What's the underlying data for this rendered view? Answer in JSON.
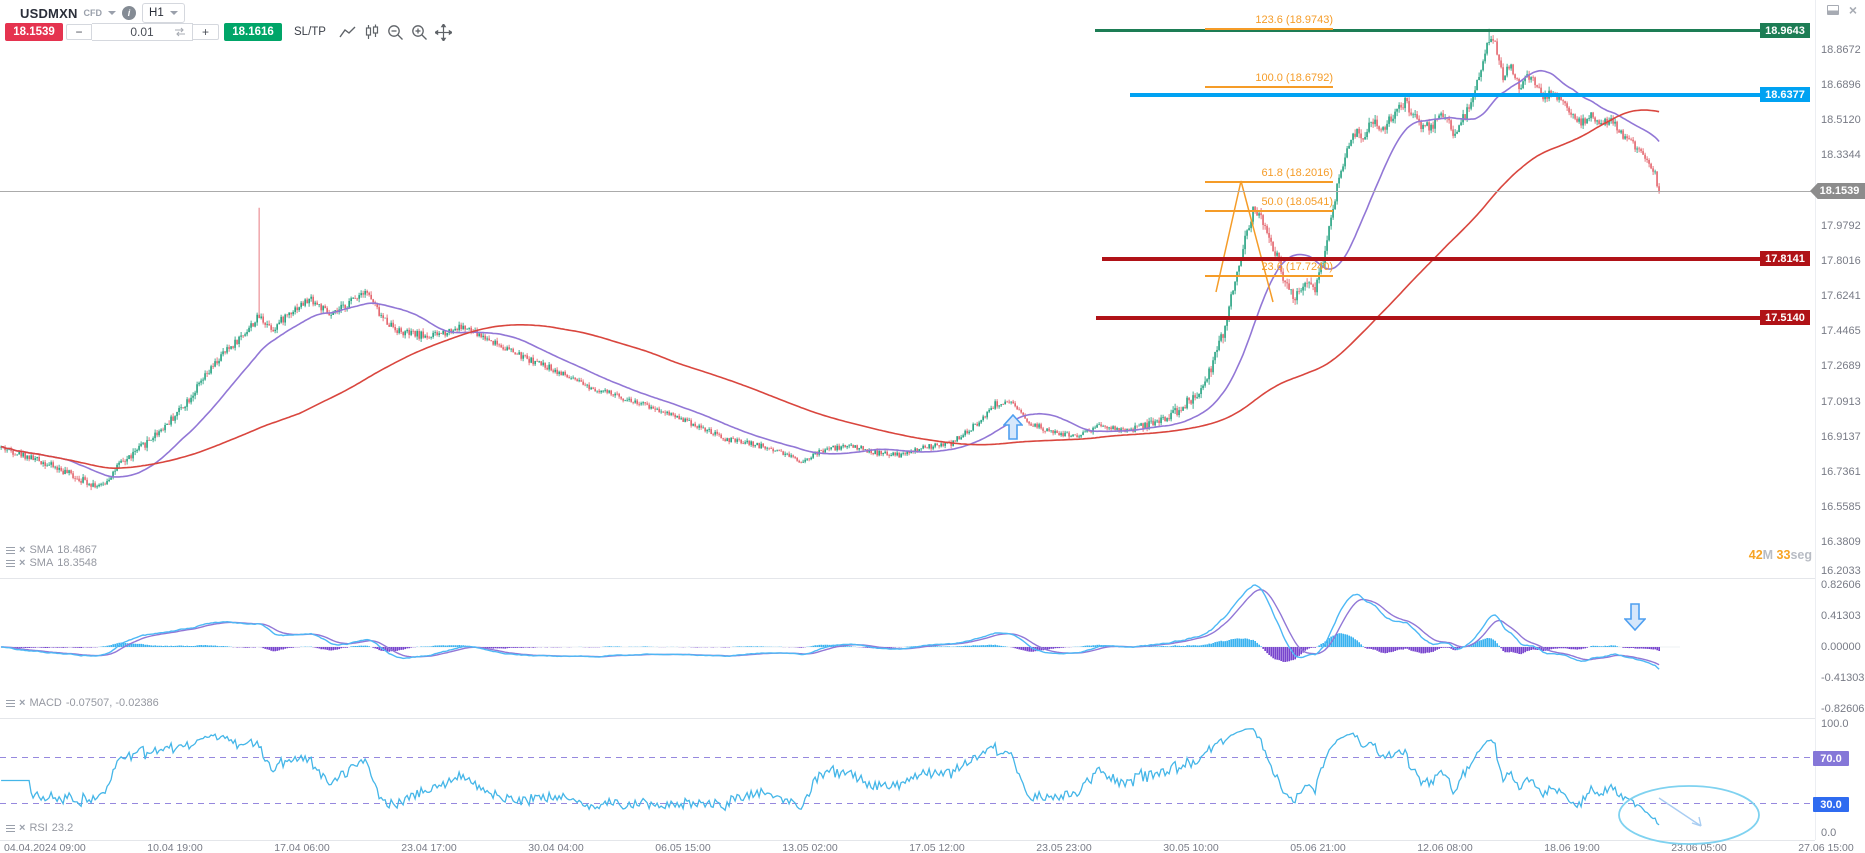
{
  "header": {
    "symbol": "USDMXN",
    "instrument_type": "CFD",
    "timeframe": "H1",
    "sell_price": "18.1539",
    "buy_price": "18.1616",
    "volume": "0.01",
    "minus_label": "−",
    "plus_label": "+",
    "sltp_label": "SL/TP",
    "sell_color": "#e5334f",
    "buy_color": "#00a568"
  },
  "window_controls": {
    "close": "×"
  },
  "indicators": {
    "sma1": {
      "label": "SMA",
      "value": "18.4867"
    },
    "sma2": {
      "label": "SMA",
      "value": "18.3548"
    },
    "macd": {
      "label": "MACD",
      "value": "-0.07507, -0.02386"
    },
    "rsi": {
      "label": "RSI",
      "value": "23.2"
    }
  },
  "countdown": {
    "min": "42",
    "min_unit": "M ",
    "sec": "33",
    "sec_unit": "seg",
    "accent_color": "#f7a424",
    "muted_color": "#b8bcc4"
  },
  "price_axis": {
    "current": "18.1539",
    "ticks": [
      "18.8672",
      "18.6896",
      "18.5120",
      "18.3344",
      "17.9792",
      "17.8016",
      "17.6241",
      "17.4465",
      "17.2689",
      "17.0913",
      "16.9137",
      "16.7361",
      "16.5585",
      "16.3809",
      "16.2033"
    ]
  },
  "macd_axis": {
    "ticks": [
      "0.82606",
      "0.41303",
      "0.00000",
      "-0.41303",
      "-0.82606"
    ]
  },
  "rsi_axis": {
    "ticks": [
      "100.0",
      "70.0",
      "30.0",
      "0.0"
    ],
    "upper_badge": "70.0",
    "lower_badge": "30.0",
    "upper_badge_color": "#8577d8",
    "lower_badge_color": "#2f6bf0"
  },
  "time_axis": {
    "labels": [
      "04.04.2024 09:00",
      "10.04 19:00",
      "17.04 06:00",
      "23.04 17:00",
      "30.04 04:00",
      "06.05 15:00",
      "13.05 02:00",
      "17.05 12:00",
      "23.05 23:00",
      "30.05 10:00",
      "05.06 21:00",
      "12.06 08:00",
      "18.06 19:00",
      "23.06 05:00",
      "27.06 15:00"
    ]
  },
  "levels": [
    {
      "price": "18.9643",
      "value": 18.9643,
      "color": "#1d7d55"
    },
    {
      "price": "18.6377",
      "value": 18.6377,
      "color": "#00a2f2"
    },
    {
      "price": "17.8141",
      "value": 17.8141,
      "color": "#b01217"
    },
    {
      "price": "17.5140",
      "value": 17.514,
      "color": "#b01217"
    }
  ],
  "fibonacci": {
    "levels": [
      {
        "label": "123.6 (18.9743)",
        "pct": 123.6,
        "price": 18.9743
      },
      {
        "label": "100.0 (18.6792)",
        "pct": 100.0,
        "price": 18.6792
      },
      {
        "label": "61.8 (18.2016)",
        "pct": 61.8,
        "price": 18.2016
      },
      {
        "label": "50.0 (18.0541)",
        "pct": 50.0,
        "price": 18.0541
      },
      {
        "label": "23.6 (17.7240)",
        "pct": 23.6,
        "price": 17.724
      }
    ]
  },
  "chart_data": {
    "type": "candlestick",
    "symbol": "USDMXN",
    "timeframe": "H1",
    "title": "USDMXN CFD H1",
    "last_price": 18.1539,
    "x_range": [
      "04.04.2024 09:00",
      "27.06 15:00"
    ],
    "y_range": [
      16.2033,
      19.05
    ],
    "grid": false,
    "candles_rendered": 830,
    "price_path_anchors": [
      [
        0,
        16.86
      ],
      [
        20,
        16.79
      ],
      [
        40,
        16.7
      ],
      [
        50,
        16.66
      ],
      [
        58,
        16.76
      ],
      [
        70,
        16.86
      ],
      [
        85,
        17.0
      ],
      [
        95,
        17.12
      ],
      [
        110,
        17.32
      ],
      [
        120,
        17.42
      ],
      [
        129,
        17.52
      ],
      [
        136,
        17.46
      ],
      [
        145,
        17.55
      ],
      [
        155,
        17.61
      ],
      [
        165,
        17.52
      ],
      [
        175,
        17.6
      ],
      [
        182,
        17.66
      ],
      [
        190,
        17.52
      ],
      [
        200,
        17.44
      ],
      [
        215,
        17.42
      ],
      [
        230,
        17.47
      ],
      [
        245,
        17.4
      ],
      [
        260,
        17.32
      ],
      [
        275,
        17.26
      ],
      [
        290,
        17.18
      ],
      [
        305,
        17.13
      ],
      [
        320,
        17.08
      ],
      [
        335,
        17.03
      ],
      [
        350,
        16.96
      ],
      [
        362,
        16.9
      ],
      [
        375,
        16.88
      ],
      [
        390,
        16.84
      ],
      [
        400,
        16.79
      ],
      [
        412,
        16.85
      ],
      [
        425,
        16.87
      ],
      [
        438,
        16.83
      ],
      [
        450,
        16.82
      ],
      [
        462,
        16.86
      ],
      [
        475,
        16.88
      ],
      [
        488,
        16.98
      ],
      [
        497,
        17.08
      ],
      [
        505,
        17.08
      ],
      [
        515,
        16.98
      ],
      [
        527,
        16.93
      ],
      [
        538,
        16.92
      ],
      [
        550,
        16.97
      ],
      [
        562,
        16.94
      ],
      [
        575,
        16.98
      ],
      [
        588,
        17.04
      ],
      [
        597,
        17.12
      ],
      [
        605,
        17.26
      ],
      [
        611,
        17.43
      ],
      [
        617,
        17.7
      ],
      [
        622,
        17.92
      ],
      [
        627,
        18.08
      ],
      [
        631,
        17.98
      ],
      [
        636,
        17.88
      ],
      [
        641,
        17.73
      ],
      [
        647,
        17.6
      ],
      [
        652,
        17.72
      ],
      [
        657,
        17.67
      ],
      [
        662,
        17.85
      ],
      [
        667,
        18.12
      ],
      [
        672,
        18.35
      ],
      [
        676,
        18.46
      ],
      [
        681,
        18.43
      ],
      [
        686,
        18.52
      ],
      [
        691,
        18.47
      ],
      [
        697,
        18.55
      ],
      [
        702,
        18.6
      ],
      [
        707,
        18.52
      ],
      [
        712,
        18.47
      ],
      [
        717,
        18.5
      ],
      [
        722,
        18.55
      ],
      [
        726,
        18.45
      ],
      [
        731,
        18.52
      ],
      [
        736,
        18.62
      ],
      [
        740,
        18.76
      ],
      [
        744,
        18.92
      ],
      [
        747,
        18.89
      ],
      [
        751,
        18.74
      ],
      [
        755,
        18.79
      ],
      [
        759,
        18.68
      ],
      [
        763,
        18.74
      ],
      [
        767,
        18.7
      ],
      [
        771,
        18.62
      ],
      [
        775,
        18.66
      ],
      [
        780,
        18.62
      ],
      [
        785,
        18.56
      ],
      [
        790,
        18.5
      ],
      [
        795,
        18.53
      ],
      [
        800,
        18.49
      ],
      [
        805,
        18.52
      ],
      [
        810,
        18.44
      ],
      [
        815,
        18.4
      ],
      [
        820,
        18.36
      ],
      [
        824,
        18.31
      ],
      [
        827,
        18.24
      ],
      [
        829,
        18.1539
      ]
    ],
    "spike_high": {
      "index": 129,
      "price": 18.07
    },
    "peak_high": {
      "index": 744,
      "price": 18.975
    },
    "overlays": {
      "sma_values": [
        18.4867,
        18.3548
      ],
      "macd_values": [
        -0.07507,
        -0.02386
      ],
      "rsi_value": 23.2
    },
    "horizontal_levels": [
      18.9643,
      18.6377,
      17.8141,
      17.514
    ],
    "fib_levels": [
      18.9743,
      18.6792,
      18.2016,
      18.0541,
      17.724
    ],
    "rsi_guides": [
      70,
      30
    ],
    "legend_position": "none"
  }
}
